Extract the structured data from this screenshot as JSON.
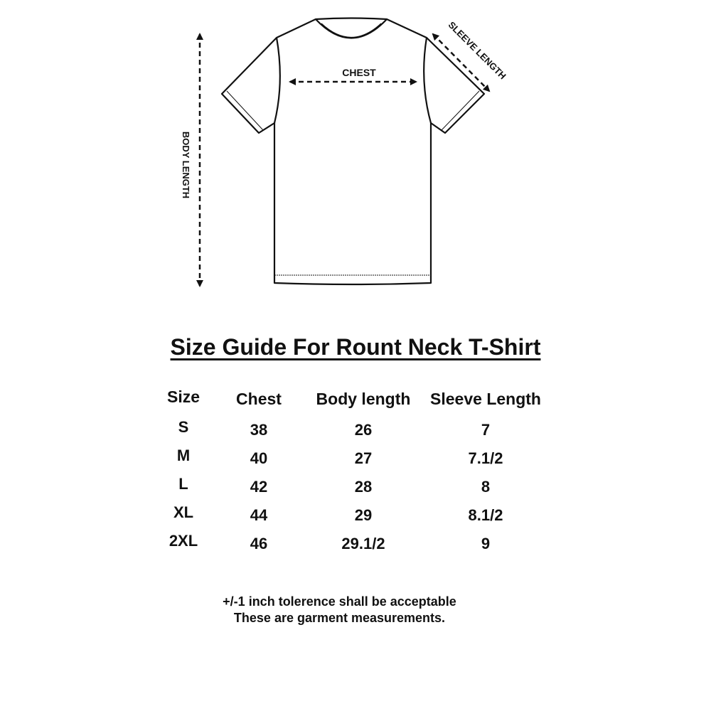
{
  "diagram": {
    "labels": {
      "chest": "CHEST",
      "sleeve_length": "SLEEVE LENGTH",
      "body_length": "BODY LENGTH"
    }
  },
  "title": "Size Guide For Rount Neck T-Shirt",
  "table": {
    "headers": [
      "Size",
      "Chest",
      "Body length",
      "Sleeve Length"
    ],
    "rows": [
      [
        "S",
        "38",
        "26",
        "7"
      ],
      [
        "M",
        "40",
        "27",
        "7.1/2"
      ],
      [
        "L",
        "42",
        "28",
        "8"
      ],
      [
        "XL",
        "44",
        "29",
        "8.1/2"
      ],
      [
        "2XL",
        "46",
        "29.1/2",
        "9"
      ]
    ]
  },
  "notes": [
    "+/-1 inch tolerence shall be acceptable",
    "These are garment measurements."
  ]
}
